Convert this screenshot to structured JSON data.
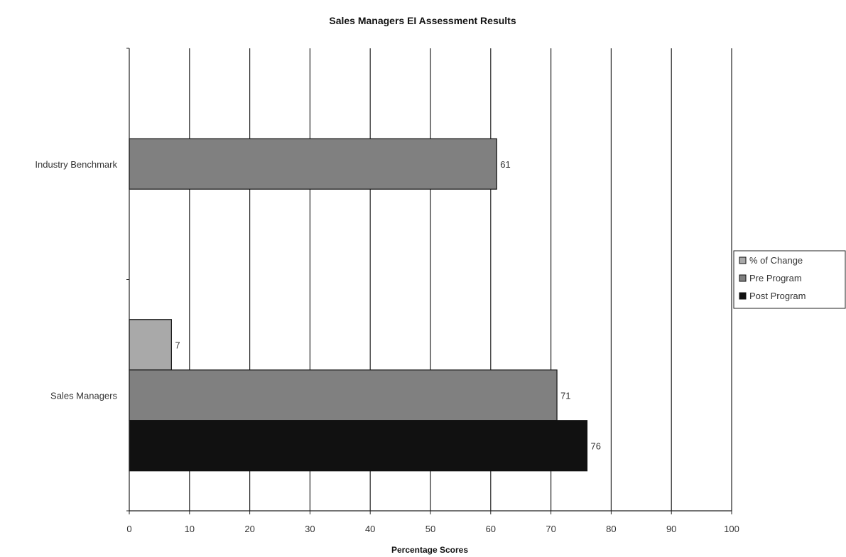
{
  "chart_data": {
    "type": "bar",
    "orientation": "horizontal",
    "title": "Sales Managers EI Assessment Results",
    "xlabel": "Percentage Scores",
    "ylabel": "",
    "xlim": [
      0,
      100
    ],
    "xticks": [
      0,
      10,
      20,
      30,
      40,
      50,
      60,
      70,
      80,
      90,
      100
    ],
    "grid": true,
    "legend_position": "right",
    "categories": [
      "Sales Managers",
      "Industry Benchmark"
    ],
    "series": [
      {
        "name": "% of Change",
        "color": "#a9a9a9",
        "values": [
          7,
          null
        ]
      },
      {
        "name": "Pre Program",
        "color": "#808080",
        "values": [
          71,
          61
        ]
      },
      {
        "name": "Post Program",
        "color": "#111111",
        "values": [
          76,
          null
        ]
      }
    ]
  }
}
